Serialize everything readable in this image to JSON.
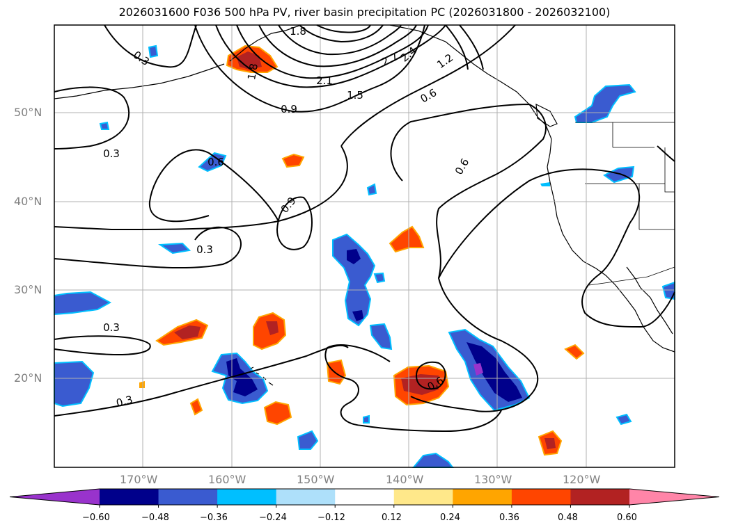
{
  "title": "2026031600 F036 500 hPa PV, river basin precipitation PC (2026031800 - 2026032100)",
  "lon_labels": [
    "170°W",
    "160°W",
    "150°W",
    "140°W",
    "130°W",
    "120°W"
  ],
  "lat_labels": [
    "50°N",
    "40°N",
    "30°N",
    "20°N"
  ],
  "pv_contour_labels": [
    "1.8",
    "0.3",
    "1.8",
    "2.1",
    "1.5",
    "0.9",
    "2.7",
    "2.4",
    "1.2",
    "0.6",
    "0.3",
    "0.6",
    "0.9",
    "0.3",
    "0.6",
    "0.3",
    "0.3",
    "0.6"
  ],
  "colorbar": {
    "tick_labels": [
      "−0.60",
      "−0.48",
      "−0.36",
      "−0.24",
      "−0.12",
      "0.12",
      "0.24",
      "0.36",
      "0.48",
      "0.60"
    ],
    "colors": [
      "#9933cc",
      "#00008b",
      "#3a5bd0",
      "#00bfff",
      "#aee0fa",
      "#ffffff",
      "#ffe88a",
      "#ffa500",
      "#ff4500",
      "#b22222",
      "#ff85a8"
    ]
  }
}
